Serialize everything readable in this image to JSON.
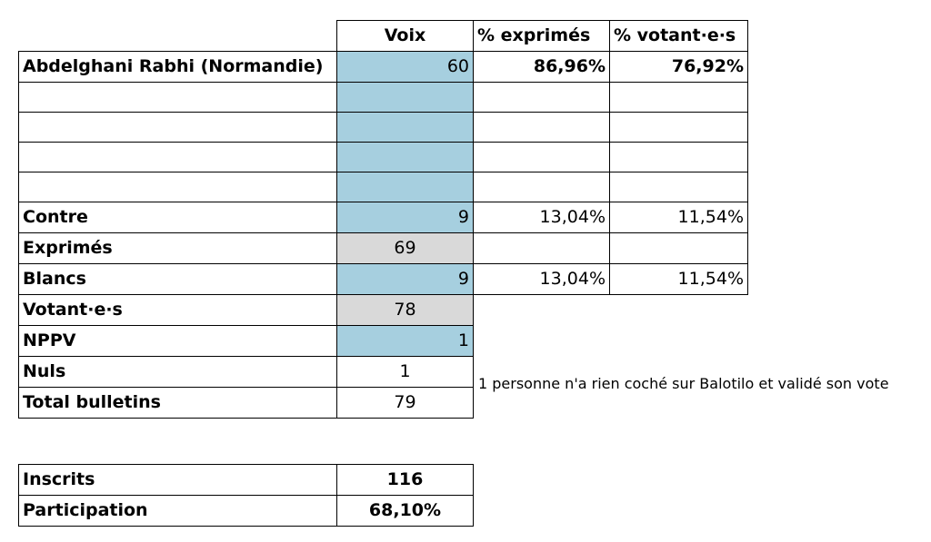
{
  "columns": {
    "voix": "Voix",
    "pct_exprimes": "% exprimés",
    "pct_votants": "% votant·e·s"
  },
  "candidate": {
    "name": "Abdelghani Rabhi (Normandie)",
    "voix": "60",
    "pct_exprimes": "86,96%",
    "pct_votants": "76,92%"
  },
  "contre": {
    "label": "Contre",
    "voix": "9",
    "pct_exprimes": "13,04%",
    "pct_votants": "11,54%"
  },
  "exprimes": {
    "label": "Exprimés",
    "voix": "69"
  },
  "blancs": {
    "label": "Blancs",
    "voix": "9",
    "pct_exprimes": "13,04%",
    "pct_votants": "11,54%"
  },
  "votants": {
    "label": "Votant·e·s",
    "voix": "78"
  },
  "nppv": {
    "label": "NPPV",
    "voix": "1"
  },
  "nuls": {
    "label": "Nuls",
    "voix": "1",
    "note": "1 personne n'a rien coché sur Balotilo et validé son vote"
  },
  "total": {
    "label": "Total bulletins",
    "voix": "79"
  },
  "inscrits": {
    "label": "Inscrits",
    "value": "116"
  },
  "participation": {
    "label": "Participation",
    "value": "68,10%"
  },
  "colors": {
    "blue_cell": "#a6cfdf",
    "grey_cell": "#d9d9d9"
  }
}
